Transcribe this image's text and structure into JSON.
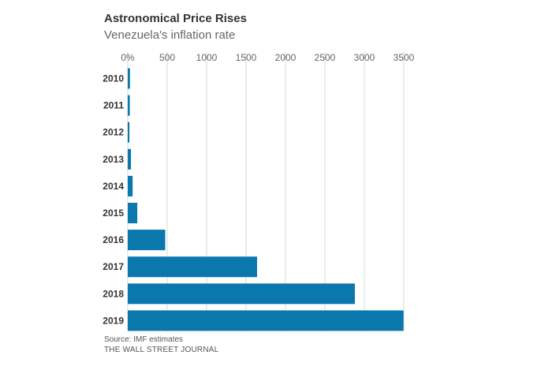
{
  "header": {
    "title": "Astronomical Price Rises",
    "subtitle": "Venezuela's inflation rate"
  },
  "footer": {
    "source": "Source: IMF estimates",
    "publisher": "THE WALL STREET JOURNAL"
  },
  "colors": {
    "bar": "#0a77ad",
    "grid": "#d9d9d9"
  },
  "chart_data": {
    "type": "bar",
    "orientation": "horizontal",
    "title": "Astronomical Price Rises",
    "subtitle": "Venezuela's inflation rate",
    "categories": [
      "2010",
      "2011",
      "2012",
      "2013",
      "2014",
      "2015",
      "2016",
      "2017",
      "2018",
      "2019"
    ],
    "values": [
      28,
      26,
      21,
      41,
      62,
      121,
      475,
      1640,
      2880,
      3497
    ],
    "xlim": [
      0,
      3500
    ],
    "x_ticks": [
      0,
      500,
      1000,
      1500,
      2000,
      2500,
      3000,
      3500
    ],
    "x_tick_labels": [
      "0%",
      "500",
      "1000",
      "1500",
      "2000",
      "2500",
      "3000",
      "3500"
    ],
    "axis_position": "top",
    "grid": true,
    "legend": "none"
  }
}
